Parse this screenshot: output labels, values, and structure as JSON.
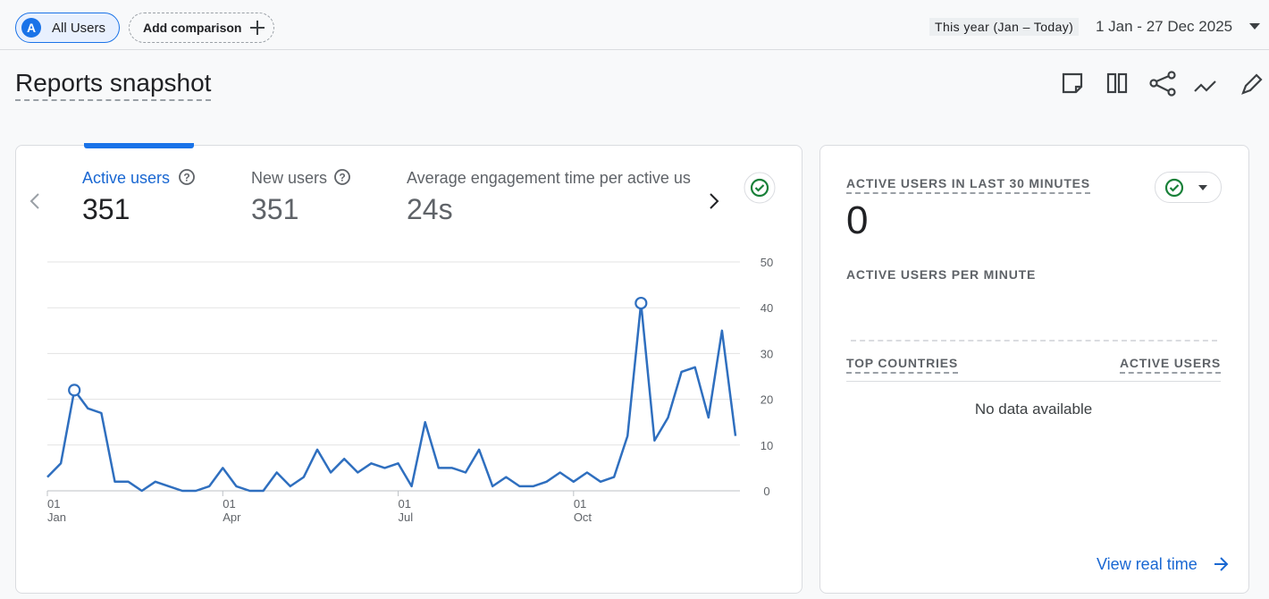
{
  "header": {
    "segment_badge": "A",
    "segment": "All Users",
    "add_comparison": "Add comparison",
    "date_preset": "This year (Jan – Today)",
    "date_range": "1 Jan - 27 Dec 2025"
  },
  "title": "Reports snapshot",
  "metrics": [
    {
      "label": "Active users",
      "value": "351"
    },
    {
      "label": "New users",
      "value": "351"
    },
    {
      "label": "Average engagement time per active us",
      "value": "24s"
    }
  ],
  "chart_data": {
    "type": "line",
    "categories": [
      "01\nJan",
      null,
      null,
      null,
      null,
      null,
      null,
      null,
      null,
      null,
      null,
      null,
      null,
      "01\nApr",
      null,
      null,
      null,
      null,
      null,
      null,
      null,
      null,
      null,
      null,
      null,
      null,
      "01\nJul",
      null,
      null,
      null,
      null,
      null,
      null,
      null,
      null,
      null,
      null,
      null,
      null,
      "01\nOct",
      null,
      null,
      null,
      null,
      null,
      null,
      null,
      null,
      null,
      null,
      null,
      null
    ],
    "series": [
      {
        "color": "#2f6fbf",
        "values": [
          3,
          6,
          22,
          18,
          17,
          2,
          2,
          0,
          2,
          1,
          0,
          0,
          1,
          5,
          1,
          0,
          0,
          4,
          1,
          3,
          9,
          4,
          7,
          4,
          6,
          5,
          6,
          1,
          15,
          5,
          5,
          4,
          9,
          1,
          3,
          1,
          1,
          2,
          4,
          2,
          4,
          2,
          3,
          12,
          41,
          11,
          16,
          26,
          27,
          16,
          35,
          12
        ]
      }
    ],
    "ylim": [
      0,
      50
    ],
    "yticks": [
      0,
      10,
      20,
      30,
      40,
      50
    ],
    "grid": true
  },
  "realtime": {
    "title": "ACTIVE USERS IN LAST 30 MINUTES",
    "value": "0",
    "per_minute": "ACTIVE USERS PER MINUTE",
    "col_countries": "TOP COUNTRIES",
    "col_users": "ACTIVE USERS",
    "empty": "No data available",
    "link": "View real time"
  }
}
